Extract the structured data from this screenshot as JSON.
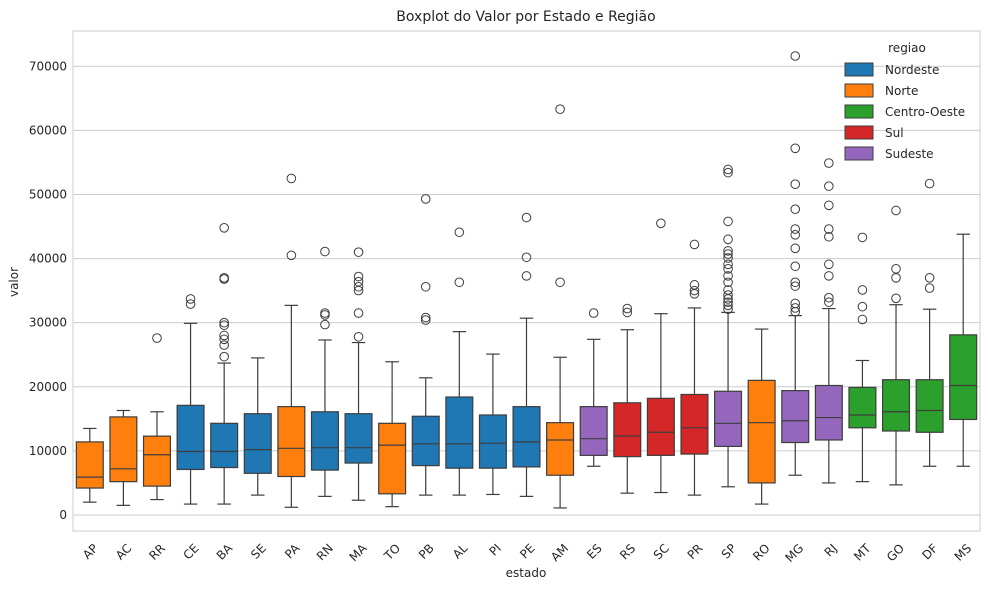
{
  "chart_data": {
    "type": "boxplot",
    "title": "Boxplot do Valor por Estado e Região",
    "xlabel": "estado",
    "ylabel": "valor",
    "ylim": [
      -2500,
      75500
    ],
    "yticks": [
      0,
      10000,
      20000,
      30000,
      40000,
      50000,
      60000,
      70000
    ],
    "grid": true,
    "legend": {
      "title": "regiao",
      "placement": "top-right",
      "entries": [
        {
          "name": "Nordeste",
          "color": "#1f77b4"
        },
        {
          "name": "Norte",
          "color": "#ff7f0e"
        },
        {
          "name": "Centro-Oeste",
          "color": "#2ca02c"
        },
        {
          "name": "Sul",
          "color": "#d62728"
        },
        {
          "name": "Sudeste",
          "color": "#9467bd"
        }
      ]
    },
    "boxes": [
      {
        "estado": "AP",
        "regiao": "Norte",
        "whisker_low": 2000,
        "q1": 4200,
        "median": 5900,
        "q3": 11400,
        "whisker_high": 13500,
        "outliers": []
      },
      {
        "estado": "AC",
        "regiao": "Norte",
        "whisker_low": 1500,
        "q1": 5200,
        "median": 7200,
        "q3": 15300,
        "whisker_high": 16300,
        "outliers": []
      },
      {
        "estado": "RR",
        "regiao": "Norte",
        "whisker_low": 2400,
        "q1": 4500,
        "median": 9400,
        "q3": 12300,
        "whisker_high": 16100,
        "outliers": [
          27600
        ]
      },
      {
        "estado": "CE",
        "regiao": "Nordeste",
        "whisker_low": 1700,
        "q1": 7100,
        "median": 9900,
        "q3": 17100,
        "whisker_high": 29900,
        "outliers": [
          32900,
          33700
        ]
      },
      {
        "estado": "BA",
        "regiao": "Nordeste",
        "whisker_low": 1700,
        "q1": 7400,
        "median": 9900,
        "q3": 14300,
        "whisker_high": 23700,
        "outliers": [
          24700,
          26500,
          27400,
          28000,
          29600,
          30000,
          36800,
          37000,
          44800
        ]
      },
      {
        "estado": "SE",
        "regiao": "Nordeste",
        "whisker_low": 3100,
        "q1": 6500,
        "median": 10200,
        "q3": 15800,
        "whisker_high": 24500,
        "outliers": []
      },
      {
        "estado": "PA",
        "regiao": "Norte",
        "whisker_low": 1200,
        "q1": 6000,
        "median": 10400,
        "q3": 16900,
        "whisker_high": 32700,
        "outliers": [
          40500,
          52500
        ]
      },
      {
        "estado": "RN",
        "regiao": "Nordeste",
        "whisker_low": 2900,
        "q1": 7000,
        "median": 10500,
        "q3": 16100,
        "whisker_high": 27300,
        "outliers": [
          29700,
          31200,
          31500,
          41100
        ]
      },
      {
        "estado": "MA",
        "regiao": "Nordeste",
        "whisker_low": 2300,
        "q1": 8100,
        "median": 10500,
        "q3": 15800,
        "whisker_high": 26900,
        "outliers": [
          27800,
          31500,
          35000,
          35600,
          36400,
          37200,
          41000
        ]
      },
      {
        "estado": "TO",
        "regiao": "Norte",
        "whisker_low": 1300,
        "q1": 3300,
        "median": 10900,
        "q3": 14300,
        "whisker_high": 23900,
        "outliers": []
      },
      {
        "estado": "PB",
        "regiao": "Nordeste",
        "whisker_low": 3100,
        "q1": 7700,
        "median": 11100,
        "q3": 15400,
        "whisker_high": 21400,
        "outliers": [
          30400,
          30800,
          35600,
          49300
        ]
      },
      {
        "estado": "AL",
        "regiao": "Nordeste",
        "whisker_low": 3100,
        "q1": 7300,
        "median": 11100,
        "q3": 18400,
        "whisker_high": 28600,
        "outliers": [
          36300,
          44100
        ]
      },
      {
        "estado": "PI",
        "regiao": "Nordeste",
        "whisker_low": 3200,
        "q1": 7300,
        "median": 11200,
        "q3": 15600,
        "whisker_high": 25100,
        "outliers": []
      },
      {
        "estado": "PE",
        "regiao": "Nordeste",
        "whisker_low": 2900,
        "q1": 7500,
        "median": 11400,
        "q3": 16900,
        "whisker_high": 30700,
        "outliers": [
          37300,
          40200,
          46400
        ]
      },
      {
        "estado": "AM",
        "regiao": "Norte",
        "whisker_low": 1100,
        "q1": 6200,
        "median": 11700,
        "q3": 14400,
        "whisker_high": 24600,
        "outliers": [
          36300,
          63300
        ]
      },
      {
        "estado": "ES",
        "regiao": "Sudeste",
        "whisker_low": 7600,
        "q1": 9300,
        "median": 11900,
        "q3": 16900,
        "whisker_high": 27400,
        "outliers": [
          31500
        ]
      },
      {
        "estado": "RS",
        "regiao": "Sul",
        "whisker_low": 3400,
        "q1": 9100,
        "median": 12300,
        "q3": 17500,
        "whisker_high": 28900,
        "outliers": [
          31600,
          32200
        ]
      },
      {
        "estado": "SC",
        "regiao": "Sul",
        "whisker_low": 3500,
        "q1": 9300,
        "median": 12900,
        "q3": 18200,
        "whisker_high": 31400,
        "outliers": [
          45500
        ]
      },
      {
        "estado": "PR",
        "regiao": "Sul",
        "whisker_low": 3100,
        "q1": 9500,
        "median": 13600,
        "q3": 18800,
        "whisker_high": 32300,
        "outliers": [
          34500,
          35000,
          35900,
          42200
        ]
      },
      {
        "estado": "SP",
        "regiao": "Sudeste",
        "whisker_low": 4400,
        "q1": 10700,
        "median": 14300,
        "q3": 19300,
        "whisker_high": 31600,
        "outliers": [
          32100,
          32700,
          33200,
          33700,
          34300,
          35100,
          36300,
          37300,
          38400,
          39100,
          40100,
          40700,
          41200,
          43000,
          45800,
          53400,
          53900
        ]
      },
      {
        "estado": "RO",
        "regiao": "Norte",
        "whisker_low": 1700,
        "q1": 5000,
        "median": 14400,
        "q3": 21000,
        "whisker_high": 29000,
        "outliers": []
      },
      {
        "estado": "MG",
        "regiao": "Sudeste",
        "whisker_low": 6200,
        "q1": 11300,
        "median": 14700,
        "q3": 19400,
        "whisker_high": 31100,
        "outliers": [
          31700,
          32300,
          33000,
          35700,
          36300,
          38800,
          41600,
          43700,
          44600,
          47700,
          51600,
          57200,
          71600
        ]
      },
      {
        "estado": "RJ",
        "regiao": "Sudeste",
        "whisker_low": 5000,
        "q1": 11700,
        "median": 15200,
        "q3": 20200,
        "whisker_high": 32200,
        "outliers": [
          33200,
          33900,
          37300,
          39100,
          43400,
          44600,
          48300,
          51300,
          54900
        ]
      },
      {
        "estado": "MT",
        "regiao": "Centro-Oeste",
        "whisker_low": 5200,
        "q1": 13600,
        "median": 15600,
        "q3": 19900,
        "whisker_high": 24100,
        "outliers": [
          30500,
          32500,
          35100,
          43300
        ]
      },
      {
        "estado": "GO",
        "regiao": "Centro-Oeste",
        "whisker_low": 4700,
        "q1": 13100,
        "median": 16100,
        "q3": 21100,
        "whisker_high": 32800,
        "outliers": [
          33800,
          37000,
          38400,
          47500
        ]
      },
      {
        "estado": "DF",
        "regiao": "Centro-Oeste",
        "whisker_low": 7600,
        "q1": 12900,
        "median": 16300,
        "q3": 21100,
        "whisker_high": 32100,
        "outliers": [
          35400,
          37000,
          51700
        ]
      },
      {
        "estado": "MS",
        "regiao": "Centro-Oeste",
        "whisker_low": 7600,
        "q1": 14900,
        "median": 20200,
        "q3": 28100,
        "whisker_high": 43800,
        "outliers": []
      }
    ]
  }
}
